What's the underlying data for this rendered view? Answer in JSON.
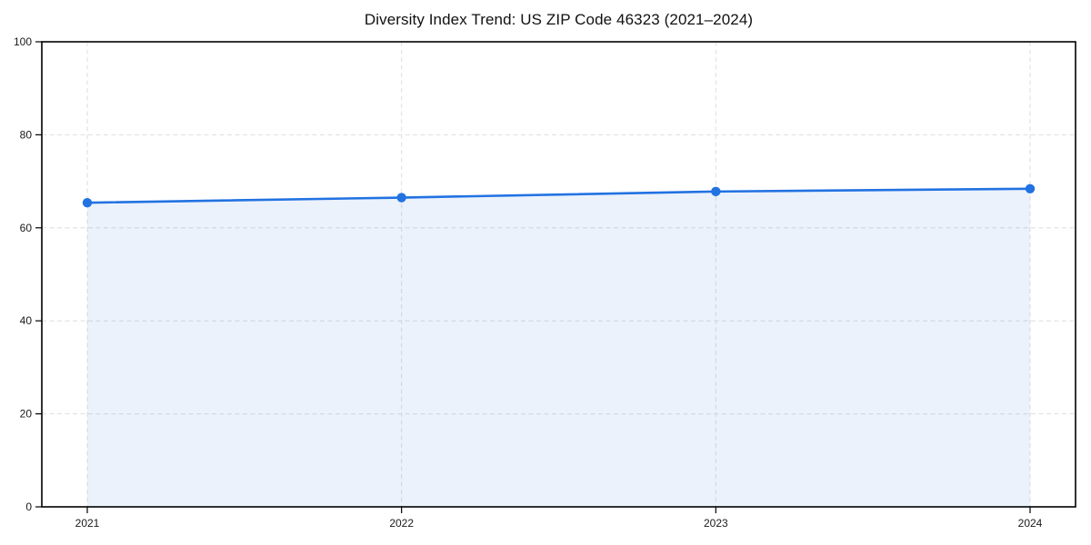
{
  "chart_data": {
    "type": "line",
    "title": "Diversity Index Trend: US ZIP Code 46323 (2021–2024)",
    "x": [
      "2021",
      "2022",
      "2023",
      "2024"
    ],
    "values": [
      65.4,
      66.5,
      67.8,
      68.4
    ],
    "xlabel": "",
    "ylabel": "",
    "ylim": [
      0,
      100
    ],
    "yticks": [
      0,
      20,
      40,
      60,
      80,
      100
    ],
    "grid": true,
    "grid_style": "dashed",
    "area_fill": true,
    "legend": false,
    "colors": {
      "line": "#2272e2",
      "marker": "#2272e2",
      "fill": "rgba(34,114,226,0.09)",
      "grid": "#dedede",
      "spine": "#000000",
      "tick_label": "#1a1a1a",
      "background": "#ffffff"
    }
  }
}
